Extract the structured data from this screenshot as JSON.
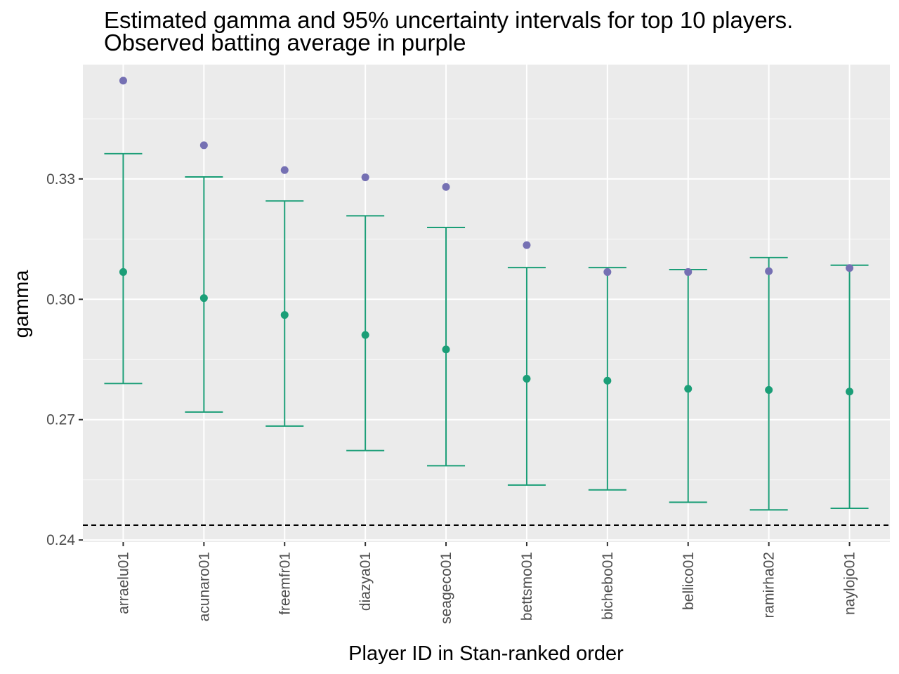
{
  "chart_data": {
    "type": "scatter",
    "title": "Estimated gamma and 95% uncertainty intervals for top 10 players.",
    "subtitle": "Observed batting average in purple",
    "xlabel": "Player ID in Stan-ranked order",
    "ylabel": "gamma",
    "ylim": [
      0.2395,
      0.3585
    ],
    "y_ticks": [
      0.24,
      0.27,
      0.3,
      0.33
    ],
    "y_tick_labels": [
      "0.24",
      "0.27",
      "0.30",
      "0.33"
    ],
    "categories": [
      "arraelu01",
      "acunaro01",
      "freemfr01",
      "diazya01",
      "seageco01",
      "bettsmo01",
      "bichebo01",
      "bellico01",
      "ramirha02",
      "naylojo01"
    ],
    "series": [
      {
        "values": [
          0.3068,
          0.3003,
          0.2961,
          0.2911,
          0.2875,
          0.2802,
          0.2797,
          0.2777,
          0.2774,
          0.277
        ],
        "lower": [
          0.279,
          0.2719,
          0.2684,
          0.2623,
          0.2585,
          0.2537,
          0.2525,
          0.2494,
          0.2475,
          0.2479
        ],
        "upper": [
          0.3363,
          0.3305,
          0.3245,
          0.3208,
          0.3179,
          0.3079,
          0.3079,
          0.3074,
          0.3104,
          0.3085
        ]
      },
      {
        "values": [
          0.3545,
          0.3384,
          0.3322,
          0.3304,
          0.328,
          0.3135,
          0.3068,
          0.3068,
          0.307,
          0.3078
        ]
      }
    ],
    "reference_line": {
      "y": 0.2437,
      "style": "dashed"
    },
    "colors": {
      "interval": "#1b9e77",
      "observed": "#7570b3",
      "panel": "#ebebeb",
      "grid": "#ffffff",
      "reference": "#000000"
    },
    "grid": true,
    "legend": "none"
  }
}
